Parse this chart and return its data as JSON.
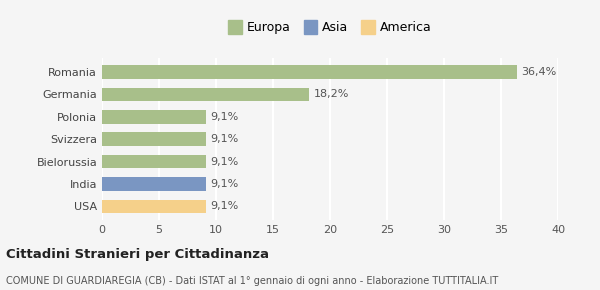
{
  "categories": [
    "Romania",
    "Germania",
    "Polonia",
    "Svizzera",
    "Bielorussia",
    "India",
    "USA"
  ],
  "values": [
    36.4,
    18.2,
    9.1,
    9.1,
    9.1,
    9.1,
    9.1
  ],
  "labels": [
    "36,4%",
    "18,2%",
    "9,1%",
    "9,1%",
    "9,1%",
    "9,1%",
    "9,1%"
  ],
  "colors": [
    "#a8bf8a",
    "#a8bf8a",
    "#a8bf8a",
    "#a8bf8a",
    "#a8bf8a",
    "#7a96c2",
    "#f5d08a"
  ],
  "legend_labels": [
    "Europa",
    "Asia",
    "America"
  ],
  "legend_colors": [
    "#a8bf8a",
    "#7a96c2",
    "#f5d08a"
  ],
  "xlim": [
    0,
    40
  ],
  "xticks": [
    0,
    5,
    10,
    15,
    20,
    25,
    30,
    35,
    40
  ],
  "title_bold": "Cittadini Stranieri per Cittadinanza",
  "subtitle": "COMUNE DI GUARDIAREGIA (CB) - Dati ISTAT al 1° gennaio di ogni anno - Elaborazione TUTTITALIA.IT",
  "bg_color": "#f5f5f5",
  "grid_color": "#ffffff",
  "label_fontsize": 8.0,
  "tick_fontsize": 8.0
}
